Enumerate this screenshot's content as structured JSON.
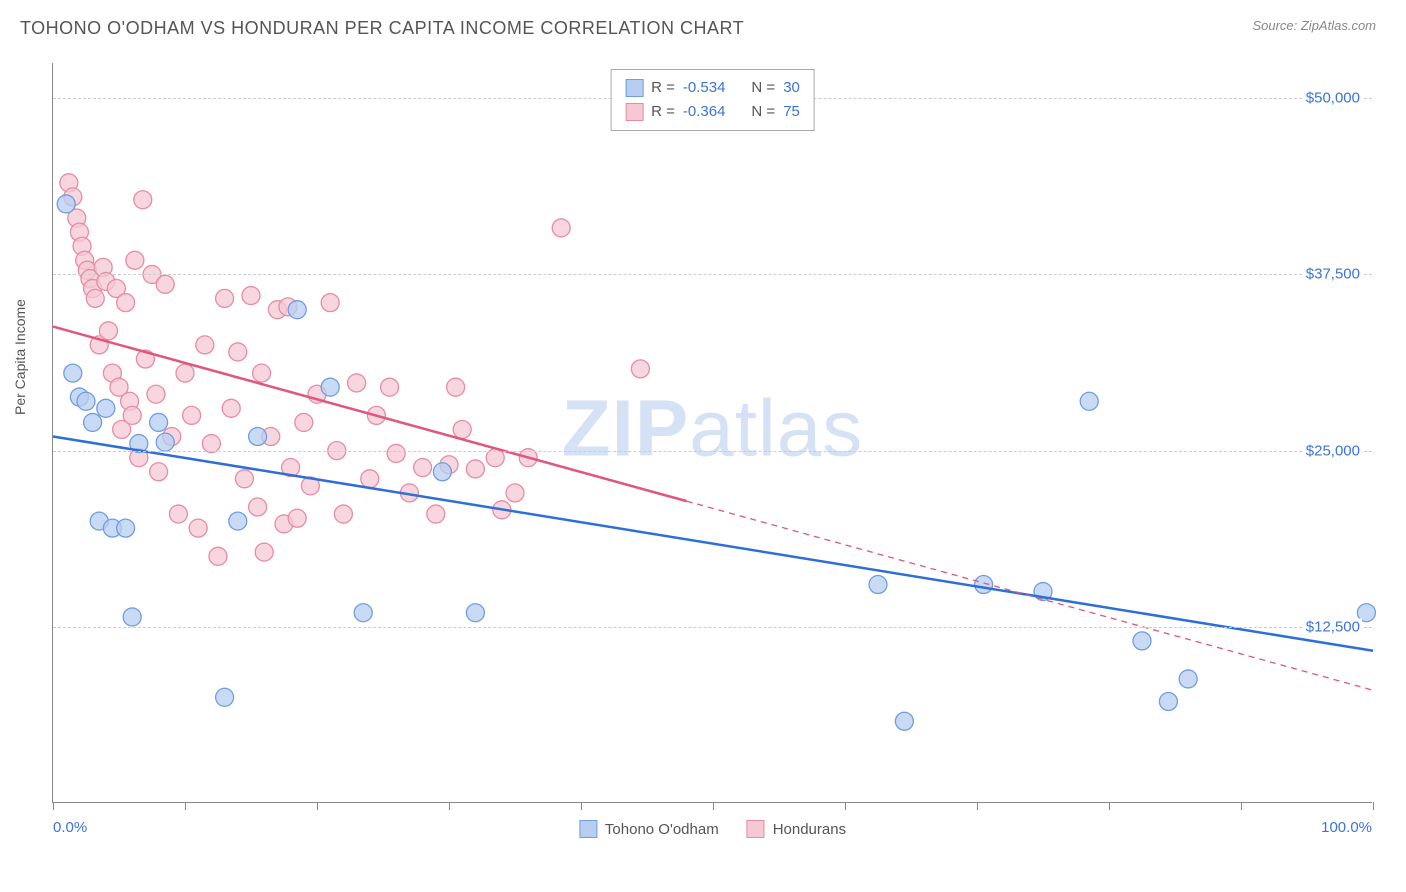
{
  "header": {
    "title": "TOHONO O'ODHAM VS HONDURAN PER CAPITA INCOME CORRELATION CHART",
    "source": "Source: ZipAtlas.com"
  },
  "chart": {
    "type": "scatter",
    "ylabel": "Per Capita Income",
    "watermark": {
      "bold": "ZIP",
      "rest": "atlas"
    },
    "background_color": "#ffffff",
    "grid_color": "#cccccc",
    "axis_color": "#888888",
    "text_color": "#555555",
    "value_color": "#3b74d8",
    "xlim": [
      0,
      100
    ],
    "ylim": [
      0,
      52500
    ],
    "yticks": [
      {
        "v": 12500,
        "label": "$12,500"
      },
      {
        "v": 25000,
        "label": "$25,000"
      },
      {
        "v": 37500,
        "label": "$37,500"
      },
      {
        "v": 50000,
        "label": "$50,000"
      }
    ],
    "xticks_pct": [
      0,
      10,
      20,
      30,
      40,
      50,
      60,
      70,
      80,
      90,
      100
    ],
    "xaxis_labels": {
      "left": "0.0%",
      "right": "100.0%"
    },
    "series": [
      {
        "name": "Tohono O'odham",
        "fill": "#b7cef1",
        "stroke": "#6f9ee0",
        "marker_r": 9,
        "stats": {
          "R": "-0.534",
          "N": "30"
        },
        "trend": {
          "x1": 0,
          "y1": 26000,
          "x2": 100,
          "y2": 10800,
          "dash_from_x": null,
          "solid_color": "#2d6fd6"
        },
        "points": [
          [
            1.0,
            42500
          ],
          [
            1.5,
            30500
          ],
          [
            2.0,
            28800
          ],
          [
            2.5,
            28500
          ],
          [
            3.0,
            27000
          ],
          [
            3.5,
            20000
          ],
          [
            4.0,
            28000
          ],
          [
            4.5,
            19500
          ],
          [
            5.5,
            19500
          ],
          [
            6.0,
            13200
          ],
          [
            6.5,
            25500
          ],
          [
            8.0,
            27000
          ],
          [
            8.5,
            25600
          ],
          [
            13.0,
            7500
          ],
          [
            14.0,
            20000
          ],
          [
            15.5,
            26000
          ],
          [
            18.5,
            35000
          ],
          [
            21.0,
            29500
          ],
          [
            23.5,
            13500
          ],
          [
            29.5,
            23500
          ],
          [
            32.0,
            13500
          ],
          [
            62.5,
            15500
          ],
          [
            64.5,
            5800
          ],
          [
            70.5,
            15500
          ],
          [
            75.0,
            15000
          ],
          [
            78.5,
            28500
          ],
          [
            82.5,
            11500
          ],
          [
            86.0,
            8800
          ],
          [
            84.5,
            7200
          ],
          [
            99.5,
            13500
          ]
        ]
      },
      {
        "name": "Hondurans",
        "fill": "#f6c8d4",
        "stroke": "#e88ba5",
        "marker_r": 9,
        "stats": {
          "R": "-0.364",
          "N": "75"
        },
        "trend": {
          "x1": 0,
          "y1": 33800,
          "x2": 100,
          "y2": 8000,
          "dash_from_x": 48,
          "solid_color": "#e0567e"
        },
        "points": [
          [
            1.2,
            44000
          ],
          [
            1.5,
            43000
          ],
          [
            1.8,
            41500
          ],
          [
            2.0,
            40500
          ],
          [
            2.2,
            39500
          ],
          [
            2.4,
            38500
          ],
          [
            2.6,
            37800
          ],
          [
            2.8,
            37200
          ],
          [
            3.0,
            36500
          ],
          [
            3.2,
            35800
          ],
          [
            3.5,
            32500
          ],
          [
            3.8,
            38000
          ],
          [
            4.0,
            37000
          ],
          [
            4.2,
            33500
          ],
          [
            4.5,
            30500
          ],
          [
            4.8,
            36500
          ],
          [
            5.0,
            29500
          ],
          [
            5.2,
            26500
          ],
          [
            5.5,
            35500
          ],
          [
            5.8,
            28500
          ],
          [
            6.0,
            27500
          ],
          [
            6.2,
            38500
          ],
          [
            6.5,
            24500
          ],
          [
            6.8,
            42800
          ],
          [
            7.0,
            31500
          ],
          [
            7.5,
            37500
          ],
          [
            7.8,
            29000
          ],
          [
            8.0,
            23500
          ],
          [
            8.5,
            36800
          ],
          [
            9.0,
            26000
          ],
          [
            9.5,
            20500
          ],
          [
            10.0,
            30500
          ],
          [
            10.5,
            27500
          ],
          [
            11.0,
            19500
          ],
          [
            11.5,
            32500
          ],
          [
            12.0,
            25500
          ],
          [
            12.5,
            17500
          ],
          [
            13.0,
            35800
          ],
          [
            13.5,
            28000
          ],
          [
            14.0,
            32000
          ],
          [
            14.5,
            23000
          ],
          [
            15.0,
            36000
          ],
          [
            15.5,
            21000
          ],
          [
            15.8,
            30500
          ],
          [
            16.0,
            17800
          ],
          [
            16.5,
            26000
          ],
          [
            17.0,
            35000
          ],
          [
            17.5,
            19800
          ],
          [
            17.8,
            35200
          ],
          [
            18.0,
            23800
          ],
          [
            18.5,
            20200
          ],
          [
            19.0,
            27000
          ],
          [
            19.5,
            22500
          ],
          [
            20.0,
            29000
          ],
          [
            21.0,
            35500
          ],
          [
            21.5,
            25000
          ],
          [
            22.0,
            20500
          ],
          [
            23.0,
            29800
          ],
          [
            24.0,
            23000
          ],
          [
            24.5,
            27500
          ],
          [
            25.5,
            29500
          ],
          [
            26.0,
            24800
          ],
          [
            27.0,
            22000
          ],
          [
            28.0,
            23800
          ],
          [
            29.0,
            20500
          ],
          [
            30.0,
            24000
          ],
          [
            30.5,
            29500
          ],
          [
            31.0,
            26500
          ],
          [
            32.0,
            23700
          ],
          [
            38.5,
            40800
          ],
          [
            44.5,
            30800
          ],
          [
            33.5,
            24500
          ],
          [
            34.0,
            20800
          ],
          [
            35.0,
            22000
          ],
          [
            36.0,
            24500
          ]
        ]
      }
    ],
    "legend_bottom": [
      {
        "label": "Tohono O'odham",
        "fill": "#b7cef1",
        "stroke": "#6f9ee0"
      },
      {
        "label": "Hondurans",
        "fill": "#f6c8d4",
        "stroke": "#e88ba5"
      }
    ]
  }
}
